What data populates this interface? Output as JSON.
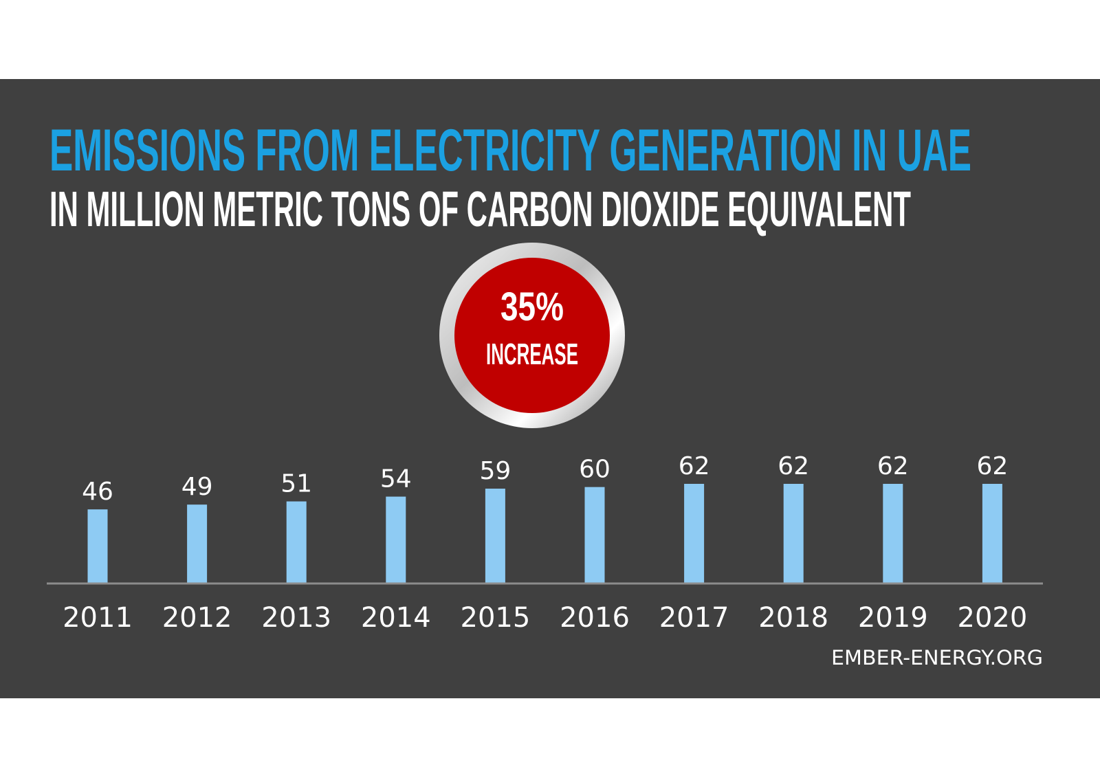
{
  "colors": {
    "background": "#ffffff",
    "panel": "#404040",
    "title": "#1ba1e2",
    "subtitle": "#ffffff",
    "bar": "#8ecbf3",
    "axis": "#8c8c8c",
    "badge_red": "#c00000"
  },
  "badge": {
    "value": "35%",
    "label": "INCREASE"
  },
  "source": "EMBER-ENERGY.ORG",
  "chart_data": {
    "type": "bar",
    "title": "EMISSIONS FROM ELECTRICITY GENERATION IN UAE",
    "subtitle": "IN MILLION METRIC TONS OF CARBON DIOXIDE EQUIVALENT",
    "categories": [
      "2011",
      "2012",
      "2013",
      "2014",
      "2015",
      "2016",
      "2017",
      "2018",
      "2019",
      "2020"
    ],
    "values": [
      46,
      49,
      51,
      54,
      59,
      60,
      62,
      62,
      62,
      62
    ],
    "data_labels": [
      "46",
      "49",
      "51",
      "54",
      "59",
      "60",
      "62",
      "62",
      "62",
      "62"
    ],
    "xlabel": "",
    "ylabel": "",
    "ylim": [
      0,
      62
    ],
    "grid": false,
    "y_axis_visible": false
  }
}
